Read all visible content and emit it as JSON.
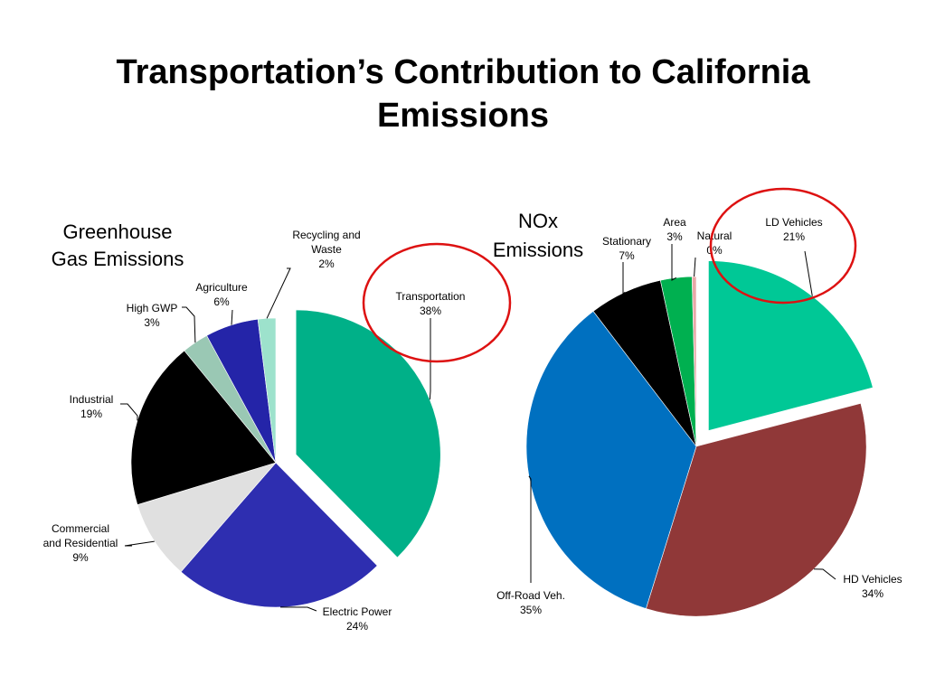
{
  "slide": {
    "title_line1": "Transportation’s Contribution to California",
    "title_line2": "Emissions"
  },
  "annotations": {
    "highlight_color": "#dd1111"
  },
  "chart_data": [
    {
      "type": "pie",
      "title_lines": [
        "Greenhouse",
        "Gas Emissions"
      ],
      "exploded_slice": "Transportation",
      "highlighted_slice": "Transportation",
      "slices": [
        {
          "name": "Transportation",
          "name_lines": [
            "Transportation"
          ],
          "value": 38,
          "label": "38%",
          "color": "#00b088"
        },
        {
          "name": "Electric Power",
          "name_lines": [
            "Electric Power"
          ],
          "value": 24,
          "label": "24%",
          "color": "#2e2eb0"
        },
        {
          "name": "Commercial and Residential",
          "name_lines": [
            "Commercial",
            "and Residential"
          ],
          "value": 9,
          "label": "9%",
          "color": "#e0e0e0"
        },
        {
          "name": "Industrial",
          "name_lines": [
            "Industrial"
          ],
          "value": 19,
          "label": "19%",
          "color": "#000000"
        },
        {
          "name": "High GWP",
          "name_lines": [
            "High GWP"
          ],
          "value": 3,
          "label": "3%",
          "color": "#9ac8b4"
        },
        {
          "name": "Agriculture",
          "name_lines": [
            "Agriculture"
          ],
          "value": 6,
          "label": "6%",
          "color": "#2424a8"
        },
        {
          "name": "Recycling and Waste",
          "name_lines": [
            "Recycling and",
            "Waste"
          ],
          "value": 2,
          "label": "2%",
          "color": "#9de2cc"
        }
      ]
    },
    {
      "type": "pie",
      "title_lines": [
        "NOx",
        "Emissions"
      ],
      "exploded_slice": "LD Vehicles",
      "highlighted_slice": "LD Vehicles",
      "slices": [
        {
          "name": "LD Vehicles",
          "name_lines": [
            "LD Vehicles"
          ],
          "value": 21,
          "label": "21%",
          "color": "#00c896"
        },
        {
          "name": "HD Vehicles",
          "name_lines": [
            "HD Vehicles"
          ],
          "value": 34,
          "label": "34%",
          "color": "#903838"
        },
        {
          "name": "Off-Road Veh.",
          "name_lines": [
            "Off-Road Veh."
          ],
          "value": 35,
          "label": "35%",
          "color": "#0070c0"
        },
        {
          "name": "Stationary",
          "name_lines": [
            "Stationary"
          ],
          "value": 7,
          "label": "7%",
          "color": "#000000"
        },
        {
          "name": "Area",
          "name_lines": [
            "Area"
          ],
          "value": 3,
          "label": "3%",
          "color": "#00b050"
        },
        {
          "name": "Natural",
          "name_lines": [
            "Natural"
          ],
          "value": 0.4,
          "label": "0%",
          "color": "#e8a8a8"
        }
      ]
    }
  ]
}
